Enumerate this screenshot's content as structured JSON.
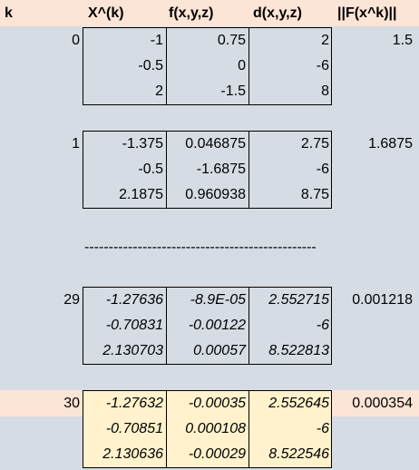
{
  "header": {
    "k": "k",
    "x": "X^(k)",
    "f": "f(x,y,z)",
    "d": "d(x,y,z)",
    "norm": "||F(x^k)||"
  },
  "blocks": [
    {
      "k": "0",
      "norm": "1.5",
      "rows": [
        {
          "x": "-1",
          "f": "0.75",
          "d": "2"
        },
        {
          "x": "-0.5",
          "f": "0",
          "d": "-6"
        },
        {
          "x": "2",
          "f": "-1.5",
          "d": "8"
        }
      ]
    },
    {
      "k": "1",
      "norm": "1.6875",
      "rows": [
        {
          "x": "-1.375",
          "f": "0.046875",
          "d": "2.75"
        },
        {
          "x": "-0.5",
          "f": "-1.6875",
          "d": "-6"
        },
        {
          "x": "2.1875",
          "f": "0.960938",
          "d": "8.75"
        }
      ]
    },
    {
      "k": "29",
      "norm": "0.001218",
      "rows": [
        {
          "x": "-1.27636",
          "f": "-8.9E-05",
          "d": "2.552715"
        },
        {
          "x": "-0.70831",
          "f": "-0.00122",
          "d": "-6"
        },
        {
          "x": "2.130703",
          "f": "0.00057",
          "d": "8.522813"
        }
      ]
    },
    {
      "k": "30",
      "norm": "0.000354",
      "rows": [
        {
          "x": "-1.27632",
          "f": "-0.00035",
          "d": "2.552645"
        },
        {
          "x": "-0.70851",
          "f": "0.000108",
          "d": "-6"
        },
        {
          "x": "2.130636",
          "f": "-0.00029",
          "d": "8.522546"
        }
      ]
    }
  ],
  "separator": "------------------------------------------------",
  "colors": {
    "sheet": "#d6dce4",
    "header": "#fce4d6",
    "highlight_matrix": "#fff2cc"
  }
}
